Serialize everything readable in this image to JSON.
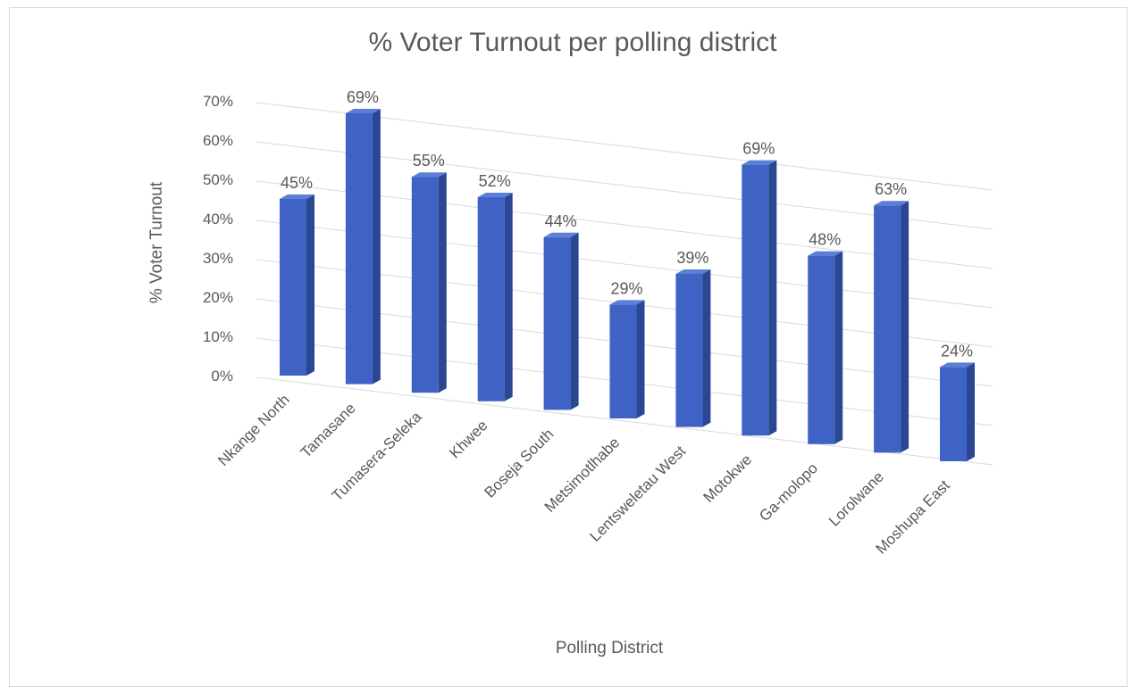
{
  "chart_data": {
    "type": "bar",
    "title": "% Voter Turnout per polling district",
    "xlabel": "Polling District",
    "ylabel": "% Voter Turnout",
    "ylim": [
      0,
      70
    ],
    "y_ticks": [
      "0%",
      "10%",
      "20%",
      "30%",
      "40%",
      "50%",
      "60%",
      "70%"
    ],
    "categories": [
      "Nkange North",
      "Tamasane",
      "Tumasera-Seleka",
      "Khwee",
      "Boseja South",
      "Metsimotlhabe",
      "Lentsweletau West",
      "Motokwe",
      "Ga-molopo",
      "Lorolwane",
      "Moshupa East"
    ],
    "values": [
      45,
      69,
      55,
      52,
      44,
      29,
      39,
      69,
      48,
      63,
      24
    ],
    "data_labels": [
      "45%",
      "69%",
      "55%",
      "52%",
      "44%",
      "29%",
      "39%",
      "69%",
      "48%",
      "63%",
      "24%"
    ],
    "bar_style": "3d-column",
    "grid": true,
    "legend": "none",
    "colors": {
      "bar_front": "#3f63c4",
      "bar_side": "#2a4794",
      "bar_top": "#5b7fd6"
    }
  }
}
